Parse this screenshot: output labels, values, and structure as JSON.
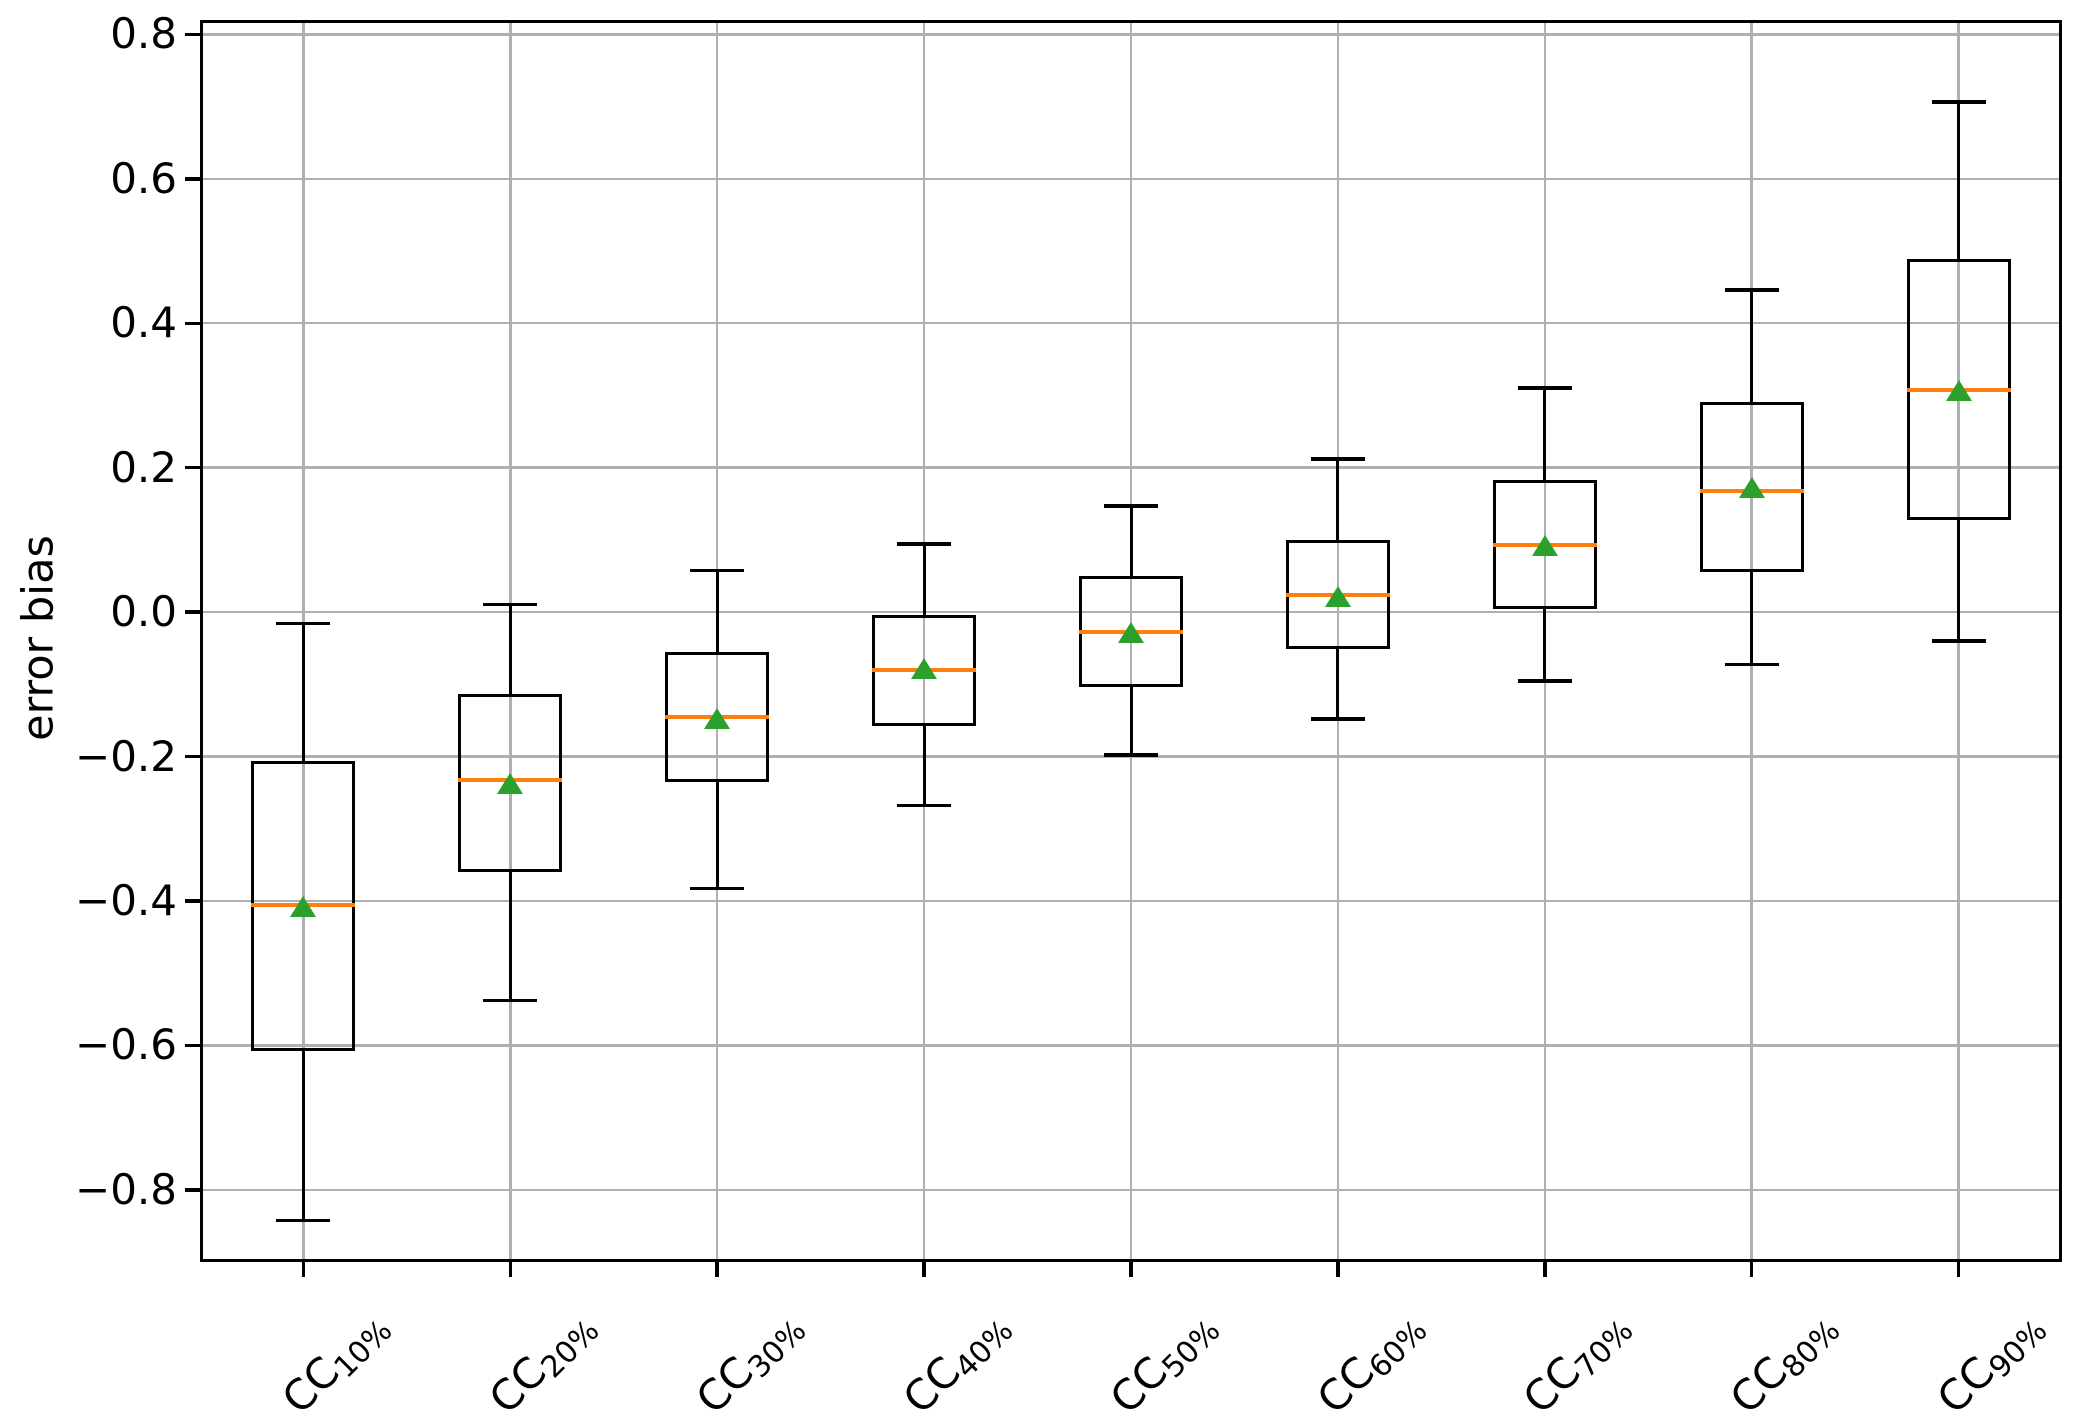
{
  "figure": {
    "background": "#ffffff"
  },
  "chart_data": {
    "type": "box",
    "title": "",
    "xlabel": "",
    "ylabel": "error bias",
    "ylim": [
      -0.9,
      0.82
    ],
    "yticks": [
      0.8,
      0.6,
      0.4,
      0.2,
      0.0,
      -0.2,
      -0.4,
      -0.6,
      -0.8
    ],
    "ytick_labels": [
      "0.8",
      "0.6",
      "0.4",
      "0.2",
      "0.0",
      "−0.2",
      "−0.4",
      "−0.6",
      "−0.8"
    ],
    "grid": true,
    "grid_axis": "both",
    "legend": false,
    "categories": [
      {
        "base": "CC",
        "sub": "10%"
      },
      {
        "base": "CC",
        "sub": "20%"
      },
      {
        "base": "CC",
        "sub": "30%"
      },
      {
        "base": "CC",
        "sub": "40%"
      },
      {
        "base": "CC",
        "sub": "50%"
      },
      {
        "base": "CC",
        "sub": "60%"
      },
      {
        "base": "CC",
        "sub": "70%"
      },
      {
        "base": "CC",
        "sub": "80%"
      },
      {
        "base": "CC",
        "sub": "90%"
      }
    ],
    "series": [
      {
        "label": "CC10%",
        "whislo": -0.815,
        "q1": -0.578,
        "med": -0.378,
        "mean": -0.38,
        "q3": -0.18,
        "whishi": 0.012
      },
      {
        "label": "CC20%",
        "whislo": -0.51,
        "q1": -0.33,
        "med": -0.205,
        "mean": -0.21,
        "q3": -0.088,
        "whishi": 0.038
      },
      {
        "label": "CC30%",
        "whislo": -0.355,
        "q1": -0.205,
        "med": -0.118,
        "mean": -0.12,
        "q3": -0.03,
        "whishi": 0.085
      },
      {
        "label": "CC40%",
        "whislo": -0.24,
        "q1": -0.128,
        "med": -0.053,
        "mean": -0.05,
        "q3": 0.022,
        "whishi": 0.122
      },
      {
        "label": "CC50%",
        "whislo": -0.17,
        "q1": -0.074,
        "med": 0.0,
        "mean": 0.0,
        "q3": 0.075,
        "whishi": 0.175
      },
      {
        "label": "CC60%",
        "whislo": -0.12,
        "q1": -0.022,
        "med": 0.052,
        "mean": 0.05,
        "q3": 0.125,
        "whishi": 0.24
      },
      {
        "label": "CC70%",
        "whislo": -0.068,
        "q1": 0.034,
        "med": 0.121,
        "mean": 0.12,
        "q3": 0.209,
        "whishi": 0.338
      },
      {
        "label": "CC80%",
        "whislo": -0.045,
        "q1": 0.085,
        "med": 0.196,
        "mean": 0.2,
        "q3": 0.316,
        "whishi": 0.474
      },
      {
        "label": "CC90%",
        "whislo": -0.012,
        "q1": 0.158,
        "med": 0.335,
        "mean": 0.335,
        "q3": 0.515,
        "whishi": 0.734
      }
    ],
    "colors": {
      "box": "#000000",
      "whisker": "#000000",
      "median": "#ff7f0e",
      "mean_marker": "#2ca02c",
      "grid": "#b0b0b0",
      "spine": "#000000",
      "text": "#000000",
      "background": "#ffffff"
    }
  }
}
